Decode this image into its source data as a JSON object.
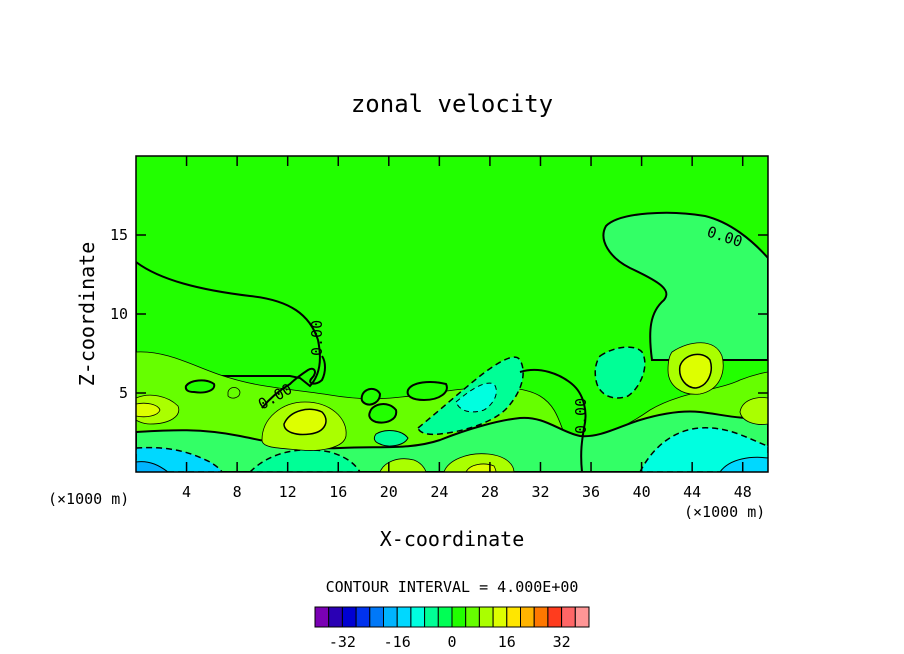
{
  "chart_data": {
    "type": "contour",
    "title": "zonal velocity",
    "xlabel": "X-coordinate",
    "ylabel": "Z-coordinate",
    "x_unit": "(×1000 m)",
    "xlim": [
      0,
      50
    ],
    "ylim": [
      0,
      20
    ],
    "x_ticks": [
      4,
      8,
      12,
      16,
      20,
      24,
      28,
      32,
      36,
      40,
      44,
      48
    ],
    "y_ticks": [
      5,
      10,
      15
    ],
    "contour_interval_label": "CONTOUR INTERVAL = 4.000E+00",
    "contour_interval": 4,
    "contour_labels": [
      "0.00",
      "0.00",
      "0.00",
      "0.00"
    ],
    "colorbar": {
      "levels": [
        -36,
        -32,
        -28,
        -24,
        -20,
        -16,
        -12,
        -8,
        -4,
        0,
        4,
        8,
        12,
        16,
        20,
        24,
        28,
        32,
        36
      ],
      "colors": [
        "#7a00b4",
        "#2a00b4",
        "#0000d2",
        "#0032ee",
        "#0078f8",
        "#00b4ff",
        "#00d8ff",
        "#00ffe0",
        "#00ff96",
        "#00ff55",
        "#22ff00",
        "#66ff00",
        "#aaff00",
        "#ddff00",
        "#ffe600",
        "#ffb400",
        "#ff7800",
        "#ff3c1e",
        "#ff6666",
        "#ff9696"
      ],
      "tick_labels": [
        "-32",
        "-16",
        "0",
        "16",
        "32"
      ],
      "tick_values": [
        -32,
        -16,
        0,
        16,
        32
      ]
    },
    "colors": {
      "background": "#22ff00",
      "zero_band": "#33ff66",
      "neg_4": "#00ff96",
      "neg_8": "#00ffe0",
      "neg_12": "#00d8ff",
      "neg_16": "#00b4ff",
      "pos_4": "#66ff00",
      "pos_8": "#aaff00",
      "pos_12": "#ddff00"
    }
  }
}
